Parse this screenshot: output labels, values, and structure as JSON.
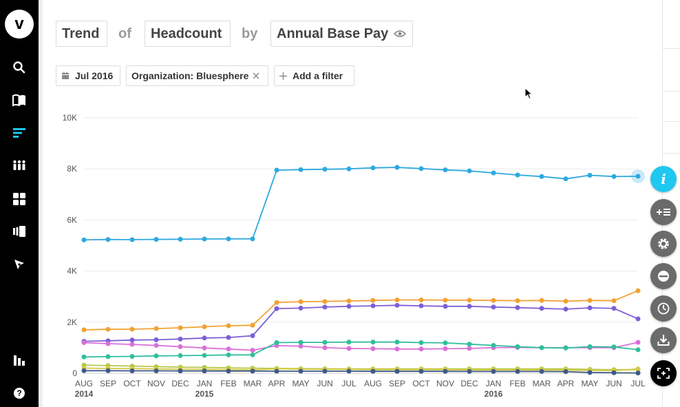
{
  "query": {
    "measure_prefix": "Trend",
    "of_word": "of",
    "metric": "Headcount",
    "by_word": "by",
    "dimension": "Annual Base Pay"
  },
  "filters": {
    "date": "Jul 2016",
    "organization": "Organization: Bluesphere",
    "add_filter": "Add a filter"
  },
  "colors": {
    "blue": "#2ea8df",
    "orange": "#f0a233",
    "purple": "#7c5fd6",
    "pink": "#db6fd8",
    "teal": "#2fbf9b",
    "green": "#b7c94b",
    "yellowgreen": "#d6c946",
    "navy": "#3d5a8a",
    "accent": "#1ec8f0"
  },
  "icons": {
    "logo": "v-logo",
    "nav": [
      "search-icon",
      "book-icon",
      "trend-icon",
      "people-icon",
      "grid-icon",
      "cards-icon",
      "compass-icon",
      "bar-chart-icon",
      "help-icon"
    ],
    "fabs": [
      "info-icon",
      "add-list-icon",
      "settings-icon",
      "minus-circle-icon",
      "clock-icon",
      "download-icon",
      "expand-icon"
    ]
  },
  "logo_text": "v",
  "help_text": "?",
  "chart_data": {
    "type": "line",
    "y_ticks": [
      "0",
      "2K",
      "4K",
      "6K",
      "8K",
      "10K"
    ],
    "ylim": [
      0,
      10000
    ],
    "x": [
      "AUG",
      "SEP",
      "OCT",
      "NOV",
      "DEC",
      "JAN",
      "FEB",
      "MAR",
      "APR",
      "MAY",
      "JUN",
      "JUL",
      "AUG",
      "SEP",
      "OCT",
      "NOV",
      "DEC",
      "JAN",
      "FEB",
      "MAR",
      "APR",
      "MAY",
      "JUN",
      "JUL"
    ],
    "year_labels": [
      {
        "index": 0,
        "label": "2014"
      },
      {
        "index": 5,
        "label": "2015"
      },
      {
        "index": 17,
        "label": "2016"
      }
    ],
    "grid": true,
    "series": [
      {
        "color": "blue",
        "values": [
          5220,
          5235,
          5230,
          5240,
          5245,
          5255,
          5260,
          5260,
          7950,
          7970,
          7985,
          8000,
          8040,
          8060,
          8010,
          7960,
          7920,
          7840,
          7760,
          7700,
          7610,
          7750,
          7700,
          7710
        ]
      },
      {
        "color": "orange",
        "values": [
          1700,
          1720,
          1725,
          1750,
          1780,
          1820,
          1860,
          1880,
          2770,
          2800,
          2810,
          2830,
          2850,
          2870,
          2870,
          2860,
          2860,
          2850,
          2840,
          2850,
          2820,
          2850,
          2840,
          3230
        ]
      },
      {
        "color": "purple",
        "values": [
          1250,
          1270,
          1300,
          1310,
          1340,
          1380,
          1400,
          1470,
          2530,
          2550,
          2590,
          2620,
          2640,
          2660,
          2640,
          2620,
          2620,
          2590,
          2570,
          2540,
          2510,
          2560,
          2540,
          2130
        ]
      },
      {
        "color": "pink",
        "values": [
          1200,
          1160,
          1130,
          1090,
          1040,
          990,
          950,
          900,
          1080,
          1060,
          1000,
          970,
          960,
          950,
          950,
          960,
          970,
          1000,
          1010,
          1000,
          1000,
          1000,
          1000,
          1210
        ]
      },
      {
        "color": "teal",
        "values": [
          640,
          650,
          660,
          680,
          690,
          700,
          720,
          720,
          1200,
          1210,
          1210,
          1220,
          1220,
          1220,
          1200,
          1190,
          1140,
          1090,
          1040,
          1000,
          990,
          1040,
          1030,
          920
        ]
      },
      {
        "color": "green",
        "values": [
          320,
          300,
          280,
          260,
          240,
          230,
          210,
          200,
          190,
          180,
          175,
          170,
          170,
          170,
          170,
          170,
          170,
          170,
          170,
          170,
          170,
          150,
          140,
          140
        ]
      },
      {
        "color": "yellowgreen",
        "values": [
          200,
          190,
          180,
          170,
          160,
          150,
          140,
          130,
          170,
          160,
          150,
          150,
          140,
          140,
          140,
          140,
          130,
          130,
          130,
          130,
          120,
          110,
          100,
          170
        ]
      },
      {
        "color": "navy",
        "values": [
          100,
          100,
          95,
          95,
          90,
          90,
          85,
          85,
          80,
          80,
          80,
          80,
          75,
          75,
          75,
          75,
          70,
          70,
          70,
          70,
          65,
          30,
          20,
          10
        ]
      }
    ]
  }
}
